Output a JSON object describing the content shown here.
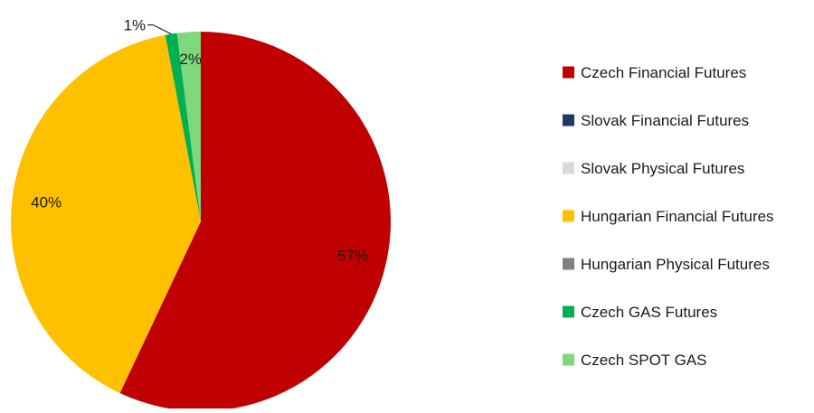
{
  "chart_data": {
    "type": "pie",
    "title": "",
    "legend_position": "right",
    "slices": [
      {
        "name": "Czech Financial Futures",
        "value": 57,
        "label": "57%",
        "color": "#C00000"
      },
      {
        "name": "Slovak Financial Futures",
        "value": 0,
        "label": "",
        "color": "#1F3864"
      },
      {
        "name": "Slovak Physical Futures",
        "value": 0,
        "label": "",
        "color": "#D9D9D9"
      },
      {
        "name": "Hungarian Financial Futures",
        "value": 40,
        "label": "40%",
        "color": "#FFC000"
      },
      {
        "name": "Hungarian Physical Futures",
        "value": 0,
        "label": "",
        "color": "#808080"
      },
      {
        "name": "Czech GAS Futures",
        "value": 1,
        "label": "1%",
        "color": "#00B050"
      },
      {
        "name": "Czech SPOT GAS",
        "value": 2,
        "label": "2%",
        "color": "#7ED87E"
      }
    ]
  }
}
